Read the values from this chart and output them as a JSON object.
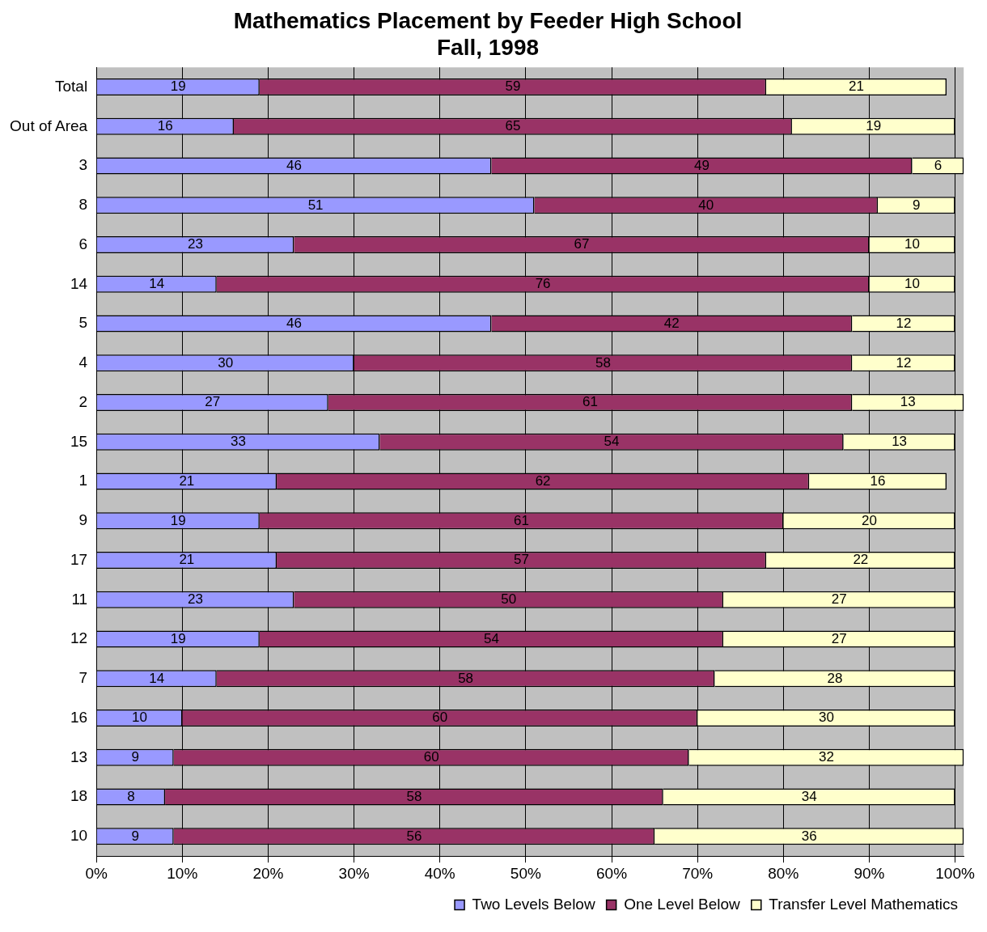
{
  "chart_data": {
    "type": "bar",
    "orientation": "horizontal",
    "stacked": true,
    "title": "Mathematics Placement by Feeder High School",
    "subtitle": "Fall, 1998",
    "categories": [
      "Total",
      "Out of Area",
      "3",
      "8",
      "6",
      "14",
      "5",
      "4",
      "2",
      "15",
      "1",
      "9",
      "17",
      "11",
      "12",
      "7",
      "16",
      "13",
      "18",
      "10"
    ],
    "series": [
      {
        "name": "Two Levels Below",
        "color": "#9999ff",
        "values": [
          19,
          16,
          46,
          51,
          23,
          14,
          46,
          30,
          27,
          33,
          21,
          19,
          21,
          23,
          19,
          14,
          10,
          9,
          8,
          9
        ]
      },
      {
        "name": "One Level Below",
        "color": "#993366",
        "values": [
          59,
          65,
          49,
          40,
          67,
          76,
          42,
          58,
          61,
          54,
          62,
          61,
          57,
          50,
          54,
          58,
          60,
          60,
          58,
          56
        ]
      },
      {
        "name": "Transfer Level Mathematics",
        "color": "#ffffcc",
        "values": [
          21,
          19,
          6,
          9,
          10,
          10,
          12,
          12,
          13,
          13,
          16,
          20,
          22,
          27,
          27,
          28,
          30,
          32,
          34,
          36
        ]
      }
    ],
    "xlim": [
      0,
      101
    ],
    "xticks": [
      {
        "value": 0,
        "label": "0%"
      },
      {
        "value": 10,
        "label": "10%"
      },
      {
        "value": 20,
        "label": "20%"
      },
      {
        "value": 30,
        "label": "30%"
      },
      {
        "value": 40,
        "label": "40%"
      },
      {
        "value": 50,
        "label": "50%"
      },
      {
        "value": 60,
        "label": "60%"
      },
      {
        "value": 70,
        "label": "70%"
      },
      {
        "value": 80,
        "label": "80%"
      },
      {
        "value": 90,
        "label": "90%"
      },
      {
        "value": 100,
        "label": "100%"
      }
    ],
    "grid": "x",
    "legend": "bottom right",
    "data_labels": true
  }
}
